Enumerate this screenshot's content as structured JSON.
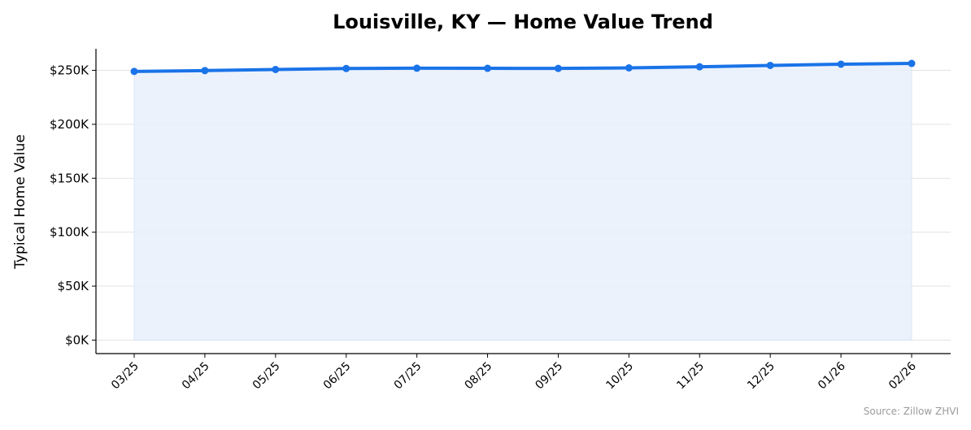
{
  "chart_data": {
    "type": "line",
    "title": "Louisville, KY — Home Value Trend",
    "xlabel": "",
    "ylabel": "Typical Home Value",
    "categories": [
      "03/25",
      "04/25",
      "05/25",
      "06/25",
      "07/25",
      "08/25",
      "09/25",
      "10/25",
      "11/25",
      "12/25",
      "01/26",
      "02/26"
    ],
    "series": [
      {
        "values": [
          249000,
          249800,
          250800,
          251700,
          252000,
          251900,
          251800,
          252300,
          253300,
          254600,
          255700,
          256400
        ]
      }
    ],
    "ylim": [
      -12500,
      270000
    ],
    "yticks": [
      0,
      50000,
      100000,
      150000,
      200000,
      250000
    ],
    "ytick_labels": [
      "$0K",
      "$50K",
      "$100K",
      "$150K",
      "$200K",
      "$250K"
    ],
    "grid": true,
    "area_fill": true,
    "colors": {
      "line": "#1a73e8",
      "fill": "#e8f0fc"
    },
    "source": "Source: Zillow ZHVI"
  }
}
